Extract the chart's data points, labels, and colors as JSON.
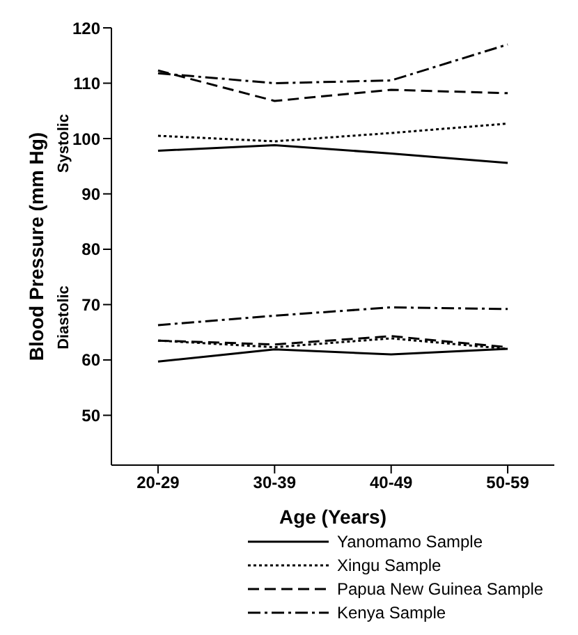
{
  "chart_data": {
    "type": "line",
    "xlabel": "Age (Years)",
    "ylabel": "Blood Pressure (mm Hg)",
    "annotations": [
      "Systolic",
      "Diastolic"
    ],
    "categories": [
      "20-29",
      "30-39",
      "40-49",
      "50-59"
    ],
    "ylim": [
      41,
      120
    ],
    "yticks": [
      50,
      60,
      70,
      80,
      90,
      100,
      110,
      120
    ],
    "grid": false,
    "legend": "bottom",
    "marker": "none",
    "series": [
      {
        "name": "Yanomamo Sample",
        "color": "#000000",
        "line_style": "solid",
        "values": [
          97.8,
          98.8,
          97.3,
          95.6
        ]
      },
      {
        "name": "Xingu Sample",
        "color": "#000000",
        "line_style": "dotted",
        "values": [
          100.5,
          99.5,
          101,
          102.7
        ]
      },
      {
        "name": "Papua New Guinea Sample",
        "color": "#000000",
        "line_style": "dashed",
        "values": [
          112.3,
          106.8,
          108.8,
          108.2
        ]
      },
      {
        "name": "Kenya  Sample",
        "color": "#000000",
        "line_style": "dashdot",
        "values": [
          111.8,
          110,
          110.5,
          117
        ]
      },
      {
        "color": "#000000",
        "line_style": "solid",
        "values": [
          59.7,
          61.9,
          61,
          62
        ]
      },
      {
        "color": "#000000",
        "line_style": "dotted",
        "values": [
          63.5,
          62.3,
          63.9,
          62
        ]
      },
      {
        "color": "#000000",
        "line_style": "dashed",
        "values": [
          63.5,
          62.8,
          64.3,
          62.3
        ]
      },
      {
        "color": "#000000",
        "line_style": "dashdot",
        "values": [
          66.3,
          68,
          69.5,
          69.2
        ]
      }
    ]
  }
}
